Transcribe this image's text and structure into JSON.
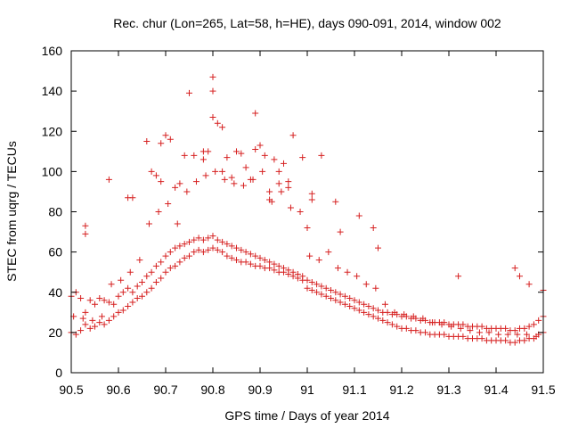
{
  "chart_data": {
    "type": "scatter",
    "title": "Rec. chur (Lon=265, Lat=58, h=HE), days 090-091, 2014, window 002",
    "xlabel": "GPS time / Days of year 2014",
    "ylabel": "STEC from uqrg / TECUs",
    "xlim": [
      90.5,
      91.5
    ],
    "ylim": [
      0,
      160
    ],
    "xticks": [
      90.5,
      90.6,
      90.7,
      90.8,
      90.9,
      91,
      91.1,
      91.2,
      91.3,
      91.4,
      91.5
    ],
    "xtick_labels": [
      "90.5",
      "90.6",
      "90.7",
      "90.8",
      "90.9",
      "91",
      "91.1",
      "91.2",
      "91.3",
      "91.4",
      "91.5"
    ],
    "yticks": [
      0,
      20,
      40,
      60,
      80,
      100,
      120,
      140,
      160
    ],
    "ytick_labels": [
      "0",
      "20",
      "40",
      "60",
      "80",
      "100",
      "120",
      "140",
      "160"
    ],
    "marker": "plus",
    "color": "#d62020",
    "series": [
      {
        "name": "STEC",
        "x": [
          90.5,
          90.51,
          90.52,
          90.53,
          90.54,
          90.55,
          90.56,
          90.57,
          90.58,
          90.59,
          90.6,
          90.61,
          90.62,
          90.63,
          90.64,
          90.65,
          90.66,
          90.67,
          90.68,
          90.69,
          90.7,
          90.71,
          90.72,
          90.73,
          90.74,
          90.75,
          90.76,
          90.77,
          90.78,
          90.79,
          90.8,
          90.81,
          90.82,
          90.83,
          90.84,
          90.85,
          90.86,
          90.87,
          90.88,
          90.89,
          90.9,
          90.91,
          90.92,
          90.93,
          90.94,
          90.95,
          90.96,
          90.97,
          90.98,
          90.99,
          91.0,
          91.01,
          91.02,
          91.03,
          91.04,
          91.05,
          91.06,
          91.07,
          91.08,
          91.09,
          91.1,
          91.11,
          91.12,
          91.13,
          91.14,
          91.15,
          91.16,
          91.17,
          91.18,
          91.19,
          91.2,
          91.21,
          91.22,
          91.23,
          91.24,
          91.25,
          91.26,
          91.27,
          91.28,
          91.29,
          91.3,
          91.31,
          91.32,
          91.33,
          91.34,
          91.35,
          91.36,
          91.37,
          91.38,
          91.39,
          91.4,
          91.41,
          91.42,
          91.43,
          91.44,
          91.45,
          91.46,
          91.47,
          91.48,
          91.49,
          91.5,
          90.5,
          90.51,
          90.52,
          90.53,
          90.54,
          90.55,
          90.56,
          90.57,
          90.58,
          90.59,
          90.6,
          90.61,
          90.62,
          90.63,
          90.64,
          90.65,
          90.66,
          90.67,
          90.68,
          90.69,
          90.7,
          90.71,
          90.72,
          90.73,
          90.74,
          90.75,
          90.76,
          90.77,
          90.78,
          90.79,
          90.8,
          90.81,
          90.82,
          90.83,
          90.84,
          90.85,
          90.86,
          90.87,
          90.88,
          90.89,
          90.9,
          90.91,
          90.92,
          90.93,
          90.94,
          90.95,
          90.96,
          90.97,
          90.98,
          90.99,
          91.0,
          91.01,
          91.02,
          91.03,
          91.04,
          91.05,
          91.06,
          91.07,
          91.08,
          91.09,
          91.1,
          91.11,
          91.12,
          91.13,
          91.14,
          91.15,
          91.16,
          91.17,
          91.18,
          91.19,
          91.2,
          91.21,
          91.22,
          91.23,
          91.24,
          91.25,
          91.26,
          91.27,
          91.28,
          91.29,
          91.3,
          91.31,
          91.32,
          91.33,
          91.34,
          91.35,
          91.36,
          91.37,
          91.38,
          91.39,
          91.4,
          91.41,
          91.42,
          91.43,
          91.44,
          91.45,
          91.46,
          91.47,
          91.48,
          91.49,
          91.5,
          90.505,
          90.525,
          90.545,
          90.565,
          90.585,
          90.605,
          90.625,
          90.645,
          90.665,
          90.685,
          90.705,
          90.725,
          90.745,
          90.765,
          90.785,
          90.805,
          90.825,
          90.845,
          90.865,
          90.885,
          90.905,
          90.925,
          90.945,
          90.965,
          90.985,
          91.005,
          91.025,
          91.045,
          91.065,
          91.085,
          91.105,
          91.125,
          91.145,
          91.165,
          91.185,
          91.205,
          91.225,
          91.245,
          91.265,
          91.285,
          91.305,
          91.325,
          91.345,
          91.365,
          91.385,
          91.405,
          91.425,
          91.445,
          91.465,
          91.485,
          90.53,
          90.53,
          90.58,
          90.63,
          90.66,
          90.68,
          90.69,
          90.69,
          90.7,
          90.72,
          90.75,
          90.74,
          90.76,
          90.78,
          90.79,
          90.8,
          90.8,
          90.8,
          90.81,
          90.82,
          90.83,
          90.85,
          90.86,
          90.87,
          90.89,
          90.89,
          90.9,
          90.91,
          90.92,
          90.93,
          90.94,
          90.95,
          90.96,
          90.96,
          90.97,
          90.99,
          91.01,
          91.01,
          91.03,
          91.06,
          91.11,
          91.14,
          91.15,
          91.32,
          91.44,
          91.45,
          91.47,
          91.5,
          90.62,
          90.67,
          90.71,
          90.73,
          90.78,
          90.82,
          90.84,
          90.88,
          90.92,
          90.94,
          91.0,
          91.07
        ],
        "y": [
          38,
          40,
          37,
          30,
          36,
          34,
          37,
          36,
          35,
          34,
          38,
          40,
          42,
          40,
          43,
          45,
          48,
          50,
          53,
          55,
          58,
          60,
          62,
          63,
          64,
          65,
          66,
          67,
          66,
          67,
          68,
          66,
          65,
          64,
          63,
          62,
          61,
          60,
          59,
          58,
          57,
          56,
          55,
          54,
          53,
          52,
          51,
          50,
          49,
          48,
          46,
          45,
          44,
          43,
          42,
          41,
          40,
          39,
          38,
          37,
          36,
          35,
          34,
          33,
          32,
          31,
          30,
          30,
          29,
          29,
          28,
          28,
          27,
          27,
          26,
          26,
          25,
          25,
          25,
          25,
          24,
          24,
          24,
          24,
          23,
          23,
          23,
          23,
          22,
          22,
          22,
          22,
          22,
          21,
          21,
          22,
          22,
          23,
          24,
          26,
          28,
          20,
          19,
          21,
          24,
          22,
          23,
          25,
          24,
          26,
          28,
          30,
          31,
          33,
          35,
          37,
          38,
          40,
          42,
          45,
          47,
          50,
          52,
          53,
          55,
          57,
          58,
          60,
          61,
          60,
          61,
          62,
          61,
          60,
          58,
          57,
          56,
          55,
          55,
          54,
          53,
          53,
          52,
          52,
          51,
          50,
          50,
          49,
          48,
          47,
          46,
          42,
          41,
          40,
          39,
          38,
          37,
          36,
          35,
          34,
          33,
          32,
          31,
          30,
          29,
          28,
          27,
          26,
          25,
          24,
          23,
          22,
          22,
          21,
          21,
          20,
          20,
          19,
          19,
          19,
          19,
          18,
          18,
          18,
          18,
          17,
          17,
          17,
          17,
          16,
          16,
          16,
          16,
          16,
          15,
          15,
          16,
          16,
          17,
          17,
          19,
          20,
          28,
          27,
          26,
          28,
          44,
          46,
          50,
          56,
          74,
          80,
          84,
          74,
          90,
          95,
          98,
          100,
          96,
          94,
          93,
          96,
          100,
          85,
          90,
          82,
          80,
          58,
          56,
          60,
          52,
          50,
          48,
          44,
          42,
          34,
          30,
          29,
          28,
          27,
          25,
          24,
          23,
          22,
          21,
          20,
          20,
          19,
          19,
          19,
          19,
          18,
          73,
          69,
          96,
          87,
          115,
          98,
          114,
          95,
          118,
          92,
          139,
          108,
          108,
          106,
          110,
          147,
          140,
          127,
          124,
          122,
          107,
          110,
          109,
          102,
          129,
          111,
          113,
          108,
          86,
          106,
          100,
          104,
          92,
          95,
          118,
          107,
          89,
          86,
          108,
          85,
          78,
          72,
          62,
          48,
          52,
          48,
          44,
          41,
          87,
          100,
          116,
          94,
          110,
          100,
          97,
          96,
          90,
          94,
          72,
          70
        ]
      }
    ]
  }
}
